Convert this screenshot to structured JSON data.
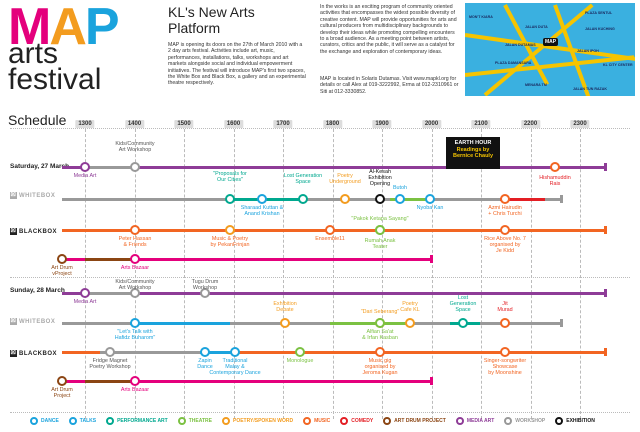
{
  "logo": {
    "letters": [
      "M",
      "A",
      "P"
    ],
    "line2": "arts",
    "line3": "festival"
  },
  "intro": {
    "title": "KL's New Arts Platform",
    "body": "MAP is opening its doors on the 27th of March 2010 with a 2 day arts festival. Activities include art, music, performances, installations, talks, workshops and art markets alongside social and individual empowerment initiatives. The festival will introduce MAP's first two spaces, the White Box and Black Box, a gallery and an experimental theatre respectively.",
    "body2": "In the works is an exciting program of community oriented activities that encompasses the widest possible diversity of creative content. MAP will provide opportunities for arts and cultural producers from multidisciplinary backgrounds to develop their ideas while promoting compelling encounters to a broad audience. As a meeting point between artists, curators, critics and the public, it will serve as a catalyst for the exchange and exploration of contemporary ideas.",
    "body3": "MAP is located in Solaris Dutamas. Visit www.mapkl.org for details or call Alex at 019-3222992, Erma at 012-2310961 or Siti at 012-3330852."
  },
  "map": {
    "pin": "MAP",
    "labels": [
      "MON'T KIARA",
      "JALAN DUTAMAS",
      "PLAZA SENTUL",
      "JALAN KUCHING",
      "KL CITY CENTER",
      "PLAZA DAMANSARA",
      "MENARA TM",
      "JALAN DUTA",
      "JALAN IPOH",
      "JALAN TUN RAZAK"
    ]
  },
  "schedule": {
    "title": "Schedule",
    "hours": [
      "1300",
      "1400",
      "1500",
      "1600",
      "1700",
      "1800",
      "1900",
      "2000",
      "2100",
      "2200",
      "2300"
    ],
    "day1": "Saturday, 27 March",
    "day2": "Sunday, 28 March",
    "whitebox": "WHITEBOX",
    "blackbox": "BLACKBOX",
    "earth_hour": {
      "line1": "EARTH HOUR",
      "line2": "Readings by",
      "line3": "Bernice Chauly"
    }
  },
  "events": [
    {
      "id": "sat-media-art",
      "label": "Media Art"
    },
    {
      "id": "sat-kids",
      "label": "Kids/Community\nArt Workshop"
    },
    {
      "id": "sat-alkesah",
      "label": "Al-Kesah\nExhibition\nOpening"
    },
    {
      "id": "sat-hish",
      "label": "Hishamuddin\nRais"
    },
    {
      "id": "sat-proposals",
      "label": "\"Proposals for\nOur Cities\""
    },
    {
      "id": "sat-lostgen",
      "label": "Lost Generation\nSpace"
    },
    {
      "id": "sat-poetry",
      "label": "Poetry\nUnderground"
    },
    {
      "id": "sat-butoh",
      "label": "Butoh"
    },
    {
      "id": "sat-nyoba",
      "label": "Nyoba Kan"
    },
    {
      "id": "sat-sharaad",
      "label": "Sharaad Kuttan &\nAnand Krishan"
    },
    {
      "id": "sat-azmi",
      "label": "Azmi Hairudin\n+ Chris Turchi"
    },
    {
      "id": "sat-pakok",
      "label": "\"Pakok Ketapa Sayang\""
    },
    {
      "id": "sat-peter",
      "label": "Peter Hassan\n& Friends"
    },
    {
      "id": "sat-music-poetry",
      "label": "Music & Poetry\nby PekanFrinjan"
    },
    {
      "id": "sat-ensemble",
      "label": "Ensemble11"
    },
    {
      "id": "sat-rumah",
      "label": "Rumah Anak\nTeater"
    },
    {
      "id": "sat-rice",
      "label": "Rice Above No. 7\norganised by\nJe Kidd"
    },
    {
      "id": "sat-artdrum",
      "label": "Art Drum\nvProject"
    },
    {
      "id": "sat-bazaar",
      "label": "Arts Bazaar"
    },
    {
      "id": "sun-media-art",
      "label": "Media Art"
    },
    {
      "id": "sun-kids",
      "label": "Kids/Community\nArt Workshop"
    },
    {
      "id": "sun-tugu",
      "label": "Tugu Drum\nWorkshop"
    },
    {
      "id": "sun-exdebate",
      "label": "Exhibition\nDebate"
    },
    {
      "id": "sun-lostgen",
      "label": "Lost\nGeneration\nSpace"
    },
    {
      "id": "sun-jit",
      "label": "Jit\nMurad"
    },
    {
      "id": "sun-dari",
      "label": "\"Dari Seberang\""
    },
    {
      "id": "sun-poetrycafe",
      "label": "Poetry\nCafe KL"
    },
    {
      "id": "sun-letstalk",
      "label": "\"Let's Talk with\nHafidz Buharom\""
    },
    {
      "id": "sun-alfian",
      "label": "Alfian Sa'at\n& Irfan Kasban"
    },
    {
      "id": "sun-fridge",
      "label": "Fridge Magnet\nPoetry Workshop"
    },
    {
      "id": "sun-zapin",
      "label": "Zapin\nDance"
    },
    {
      "id": "sun-traditional",
      "label": "Traditional\nMalay &\nContemporary Dance"
    },
    {
      "id": "sun-monologue",
      "label": "Monologue"
    },
    {
      "id": "sun-musicgig",
      "label": "Music gig\norganised by\nJeroma Kugan"
    },
    {
      "id": "sun-singer",
      "label": "Singer-songwriter\nShowcase\nby Moonshine"
    },
    {
      "id": "sun-artdrum",
      "label": "Art Drum\nProject"
    },
    {
      "id": "sun-bazaar",
      "label": "Arts Bazaar"
    }
  ],
  "legend": [
    {
      "label": "DANCE",
      "color": "#1aa3dd"
    },
    {
      "label": "TALKS",
      "color": "#1aa3dd"
    },
    {
      "label": "PERFORMANCE ART",
      "color": "#00a88f"
    },
    {
      "label": "THEATRE",
      "color": "#7bc142"
    },
    {
      "label": "POETRY/SPOKEN WORD",
      "color": "#f39c1f"
    },
    {
      "label": "MUSIC",
      "color": "#f26522"
    },
    {
      "label": "COMEDY",
      "color": "#e31e24"
    },
    {
      "label": "ART DRUM PROJECT",
      "color": "#8b4513"
    },
    {
      "label": "MEDIA ART",
      "color": "#8e3c97"
    },
    {
      "label": "WORKSHOP",
      "color": "#999999"
    },
    {
      "label": "EXHIBITION",
      "color": "#111111"
    }
  ],
  "colors": {
    "media": "#8e3c97",
    "workshop": "#999999",
    "dance": "#1aa3dd",
    "talks": "#1aa3dd",
    "perf": "#00a88f",
    "theatre": "#7bc142",
    "poetry": "#f39c1f",
    "music": "#f26522",
    "comedy": "#e31e24",
    "drum": "#8b4513",
    "exhibition": "#111111",
    "bazaar": "#e4007c"
  }
}
